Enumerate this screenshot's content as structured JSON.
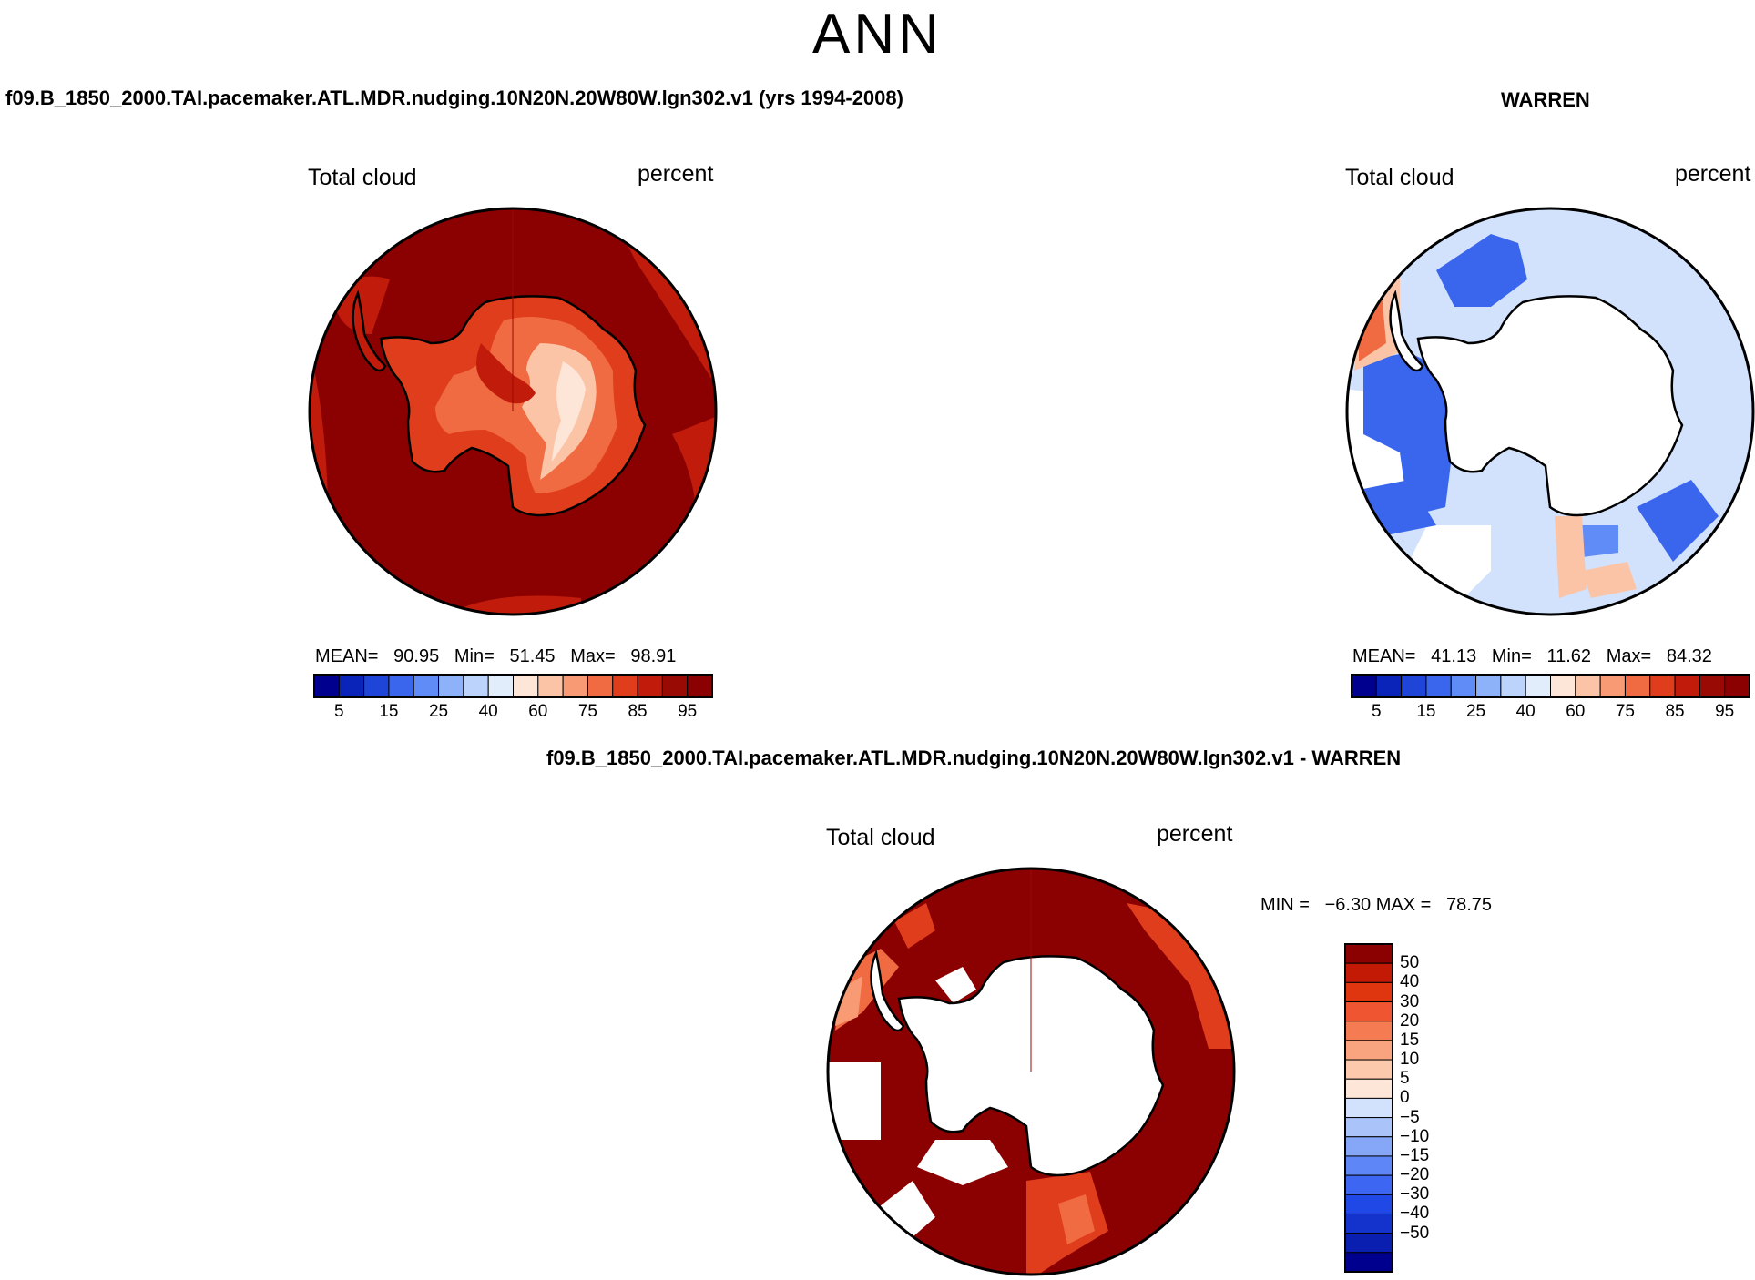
{
  "header": {
    "season": "ANN"
  },
  "panels": [
    {
      "id": "model",
      "case_title": "f09.B_1850_2000.TAI.pacemaker.ATL.MDR.nudging.10N20N.20W80W.lgn302.v1 (yrs 1994-2008)",
      "left_label": "Total cloud",
      "right_label": "percent",
      "stats": {
        "mean_label": "MEAN=",
        "mean": "90.95",
        "min_label": "Min=",
        "min": "51.45",
        "max_label": "Max=",
        "max": "98.91"
      }
    },
    {
      "id": "obs",
      "case_title": "WARREN",
      "left_label": "Total cloud",
      "right_label": "percent",
      "stats": {
        "mean_label": "MEAN=",
        "mean": "41.13",
        "min_label": "Min=",
        "min": "11.62",
        "max_label": "Max=",
        "max": "84.32"
      }
    },
    {
      "id": "diff",
      "case_title": "f09.B_1850_2000.TAI.pacemaker.ATL.MDR.nudging.10N20N.20W80W.lgn302.v1 - WARREN",
      "left_label": "Total cloud",
      "right_label": "percent",
      "stats": {
        "min_label": "MIN =",
        "min": "−6.30",
        "max_label": "MAX =",
        "max": "78.75"
      }
    }
  ],
  "colorbar_abs": {
    "colors": [
      "#00008f",
      "#0a23b8",
      "#1e44d8",
      "#3a66ee",
      "#5f8cf6",
      "#8db2fa",
      "#bcd3fb",
      "#e2edfc",
      "#fde6d7",
      "#fcc4a6",
      "#f89b74",
      "#f06a42",
      "#e03d1c",
      "#c11c0b",
      "#9a0a05",
      "#8b0000"
    ],
    "tick_labels": [
      "5",
      "15",
      "25",
      "40",
      "60",
      "75",
      "85",
      "95"
    ]
  },
  "colorbar_diff": {
    "colors": [
      "#00008f",
      "#0a1fb0",
      "#1432cc",
      "#2048e6",
      "#3d67f2",
      "#5f86f6",
      "#86a6f8",
      "#aac4fa",
      "#d2e2fc",
      "#fde6d7",
      "#fcc9ac",
      "#f9a47e",
      "#f57c52",
      "#ee5530",
      "#e0360f",
      "#c21a05",
      "#8b0000"
    ],
    "tick_labels": [
      "50",
      "40",
      "30",
      "20",
      "15",
      "10",
      "5",
      "0",
      "−5",
      "−10",
      "−15",
      "−20",
      "−30",
      "−40",
      "−50"
    ]
  }
}
